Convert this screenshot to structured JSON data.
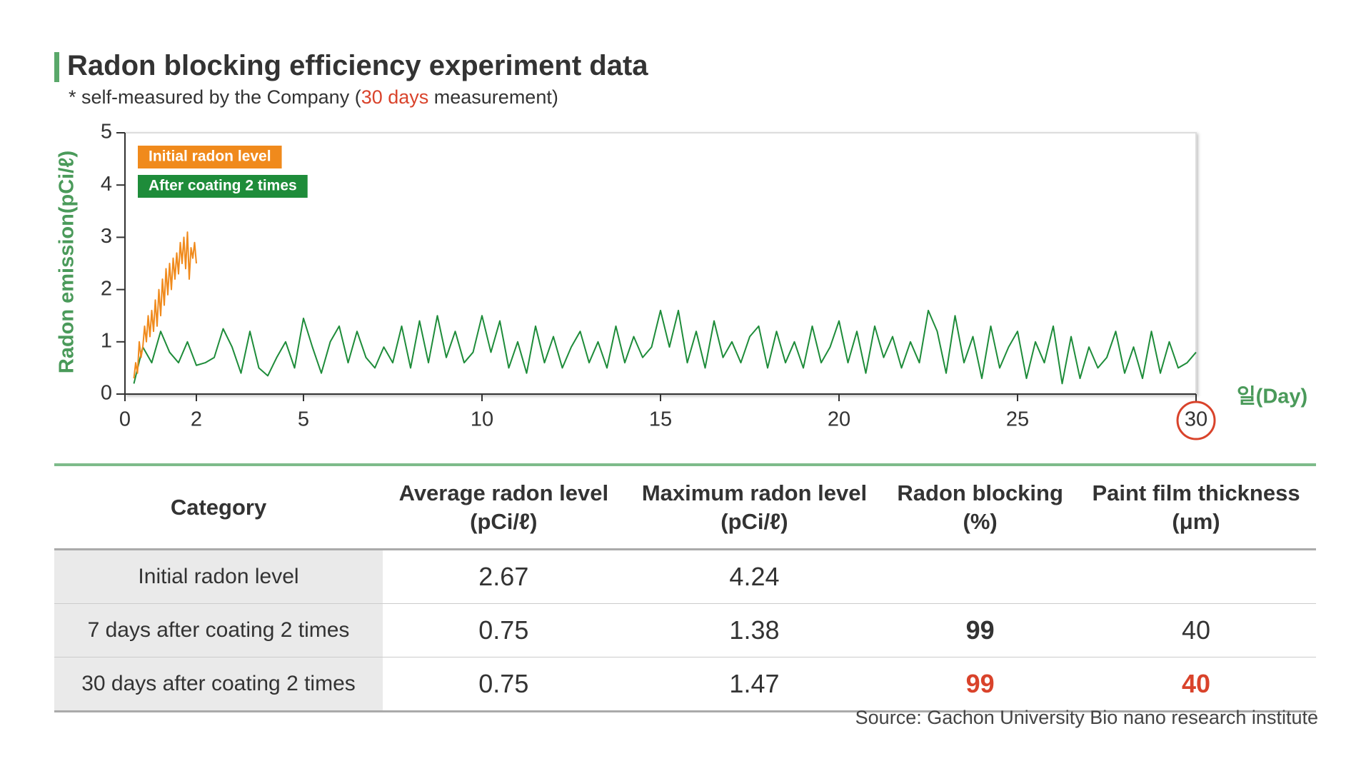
{
  "chart_data": {
    "type": "line",
    "title": "Radon blocking efficiency experiment data",
    "subtitle_prefix": "* self-measured by the Company (",
    "subtitle_highlight": "30 days",
    "subtitle_suffix": " measurement)",
    "y_label": "Radon emission(pCi/ℓ)",
    "x_label": "일(Day)",
    "xlim": [
      0,
      30
    ],
    "xticks": [
      0,
      2,
      5,
      10,
      15,
      20,
      25,
      30
    ],
    "ylim": [
      0,
      5
    ],
    "yticks": [
      0,
      1,
      2,
      3,
      4,
      5
    ],
    "highlighted_xtick": 30,
    "series": [
      {
        "name": "Initial radon level",
        "color": "#f08a1c",
        "x": [
          0.25,
          0.3,
          0.35,
          0.4,
          0.45,
          0.5,
          0.55,
          0.6,
          0.65,
          0.7,
          0.75,
          0.8,
          0.85,
          0.9,
          0.95,
          1.0,
          1.05,
          1.1,
          1.15,
          1.2,
          1.25,
          1.3,
          1.35,
          1.4,
          1.45,
          1.5,
          1.55,
          1.6,
          1.65,
          1.7,
          1.75,
          1.8,
          1.85,
          1.9,
          1.95,
          2.0
        ],
        "values": [
          0.3,
          0.6,
          0.4,
          1.0,
          0.7,
          0.9,
          1.3,
          1.0,
          1.5,
          1.1,
          1.6,
          1.2,
          1.8,
          1.3,
          2.0,
          1.5,
          2.2,
          1.7,
          2.4,
          1.9,
          2.5,
          2.0,
          2.6,
          2.2,
          2.7,
          2.3,
          2.9,
          2.5,
          3.0,
          2.4,
          3.1,
          2.2,
          2.8,
          2.6,
          2.9,
          2.5
        ]
      },
      {
        "name": "After coating 2 times",
        "color": "#1e8c3a",
        "x": [
          0.25,
          0.5,
          0.75,
          1.0,
          1.25,
          1.5,
          1.75,
          2.0,
          2.25,
          2.5,
          2.75,
          3.0,
          3.25,
          3.5,
          3.75,
          4.0,
          4.25,
          4.5,
          4.75,
          5.0,
          5.25,
          5.5,
          5.75,
          6.0,
          6.25,
          6.5,
          6.75,
          7.0,
          7.25,
          7.5,
          7.75,
          8.0,
          8.25,
          8.5,
          8.75,
          9.0,
          9.25,
          9.5,
          9.75,
          10.0,
          10.25,
          10.5,
          10.75,
          11.0,
          11.25,
          11.5,
          11.75,
          12.0,
          12.25,
          12.5,
          12.75,
          13.0,
          13.25,
          13.5,
          13.75,
          14.0,
          14.25,
          14.5,
          14.75,
          15.0,
          15.25,
          15.5,
          15.75,
          16.0,
          16.25,
          16.5,
          16.75,
          17.0,
          17.25,
          17.5,
          17.75,
          18.0,
          18.25,
          18.5,
          18.75,
          19.0,
          19.25,
          19.5,
          19.75,
          20.0,
          20.25,
          20.5,
          20.75,
          21.0,
          21.25,
          21.5,
          21.75,
          22.0,
          22.25,
          22.5,
          22.75,
          23.0,
          23.25,
          23.5,
          23.75,
          24.0,
          24.25,
          24.5,
          24.75,
          25.0,
          25.25,
          25.5,
          25.75,
          26.0,
          26.25,
          26.5,
          26.75,
          27.0,
          27.25,
          27.5,
          27.75,
          28.0,
          28.25,
          28.5,
          28.75,
          29.0,
          29.25,
          29.5,
          29.75,
          30.0
        ],
        "values": [
          0.2,
          0.9,
          0.6,
          1.2,
          0.8,
          0.6,
          1.0,
          0.55,
          0.6,
          0.7,
          1.25,
          0.9,
          0.4,
          1.2,
          0.5,
          0.35,
          0.7,
          1.0,
          0.5,
          1.45,
          0.9,
          0.4,
          1.0,
          1.3,
          0.6,
          1.2,
          0.7,
          0.5,
          0.9,
          0.6,
          1.3,
          0.5,
          1.4,
          0.6,
          1.5,
          0.7,
          1.2,
          0.6,
          0.8,
          1.5,
          0.8,
          1.4,
          0.5,
          1.0,
          0.4,
          1.3,
          0.6,
          1.1,
          0.5,
          0.9,
          1.2,
          0.6,
          1.0,
          0.5,
          1.3,
          0.6,
          1.1,
          0.7,
          0.9,
          1.6,
          0.9,
          1.6,
          0.6,
          1.2,
          0.5,
          1.4,
          0.7,
          1.0,
          0.6,
          1.1,
          1.3,
          0.5,
          1.2,
          0.6,
          1.0,
          0.5,
          1.3,
          0.6,
          0.9,
          1.4,
          0.6,
          1.2,
          0.4,
          1.3,
          0.7,
          1.1,
          0.5,
          1.0,
          0.6,
          1.6,
          1.2,
          0.4,
          1.5,
          0.6,
          1.1,
          0.3,
          1.3,
          0.5,
          0.9,
          1.2,
          0.3,
          1.0,
          0.6,
          1.3,
          0.2,
          1.1,
          0.3,
          0.9,
          0.5,
          0.7,
          1.2,
          0.4,
          0.9,
          0.3,
          1.2,
          0.4,
          1.0,
          0.5,
          0.6,
          0.8
        ]
      }
    ]
  },
  "table": {
    "headers": [
      [
        "Category"
      ],
      [
        "Average radon level",
        "(pCi/ℓ)"
      ],
      [
        "Maximum radon level",
        "(pCi/ℓ)"
      ],
      [
        "Radon blocking",
        "(%)"
      ],
      [
        "Paint film thickness",
        "(μm)"
      ]
    ],
    "rows": [
      [
        "Initial radon level",
        2.67,
        4.24,
        null,
        null
      ],
      [
        "7 days after coating 2 times",
        0.75,
        1.38,
        99,
        40
      ],
      [
        "30 days after coating 2 times",
        0.75,
        1.47,
        99,
        40
      ]
    ]
  },
  "source": "Source: Gachon University Bio nano research institute"
}
